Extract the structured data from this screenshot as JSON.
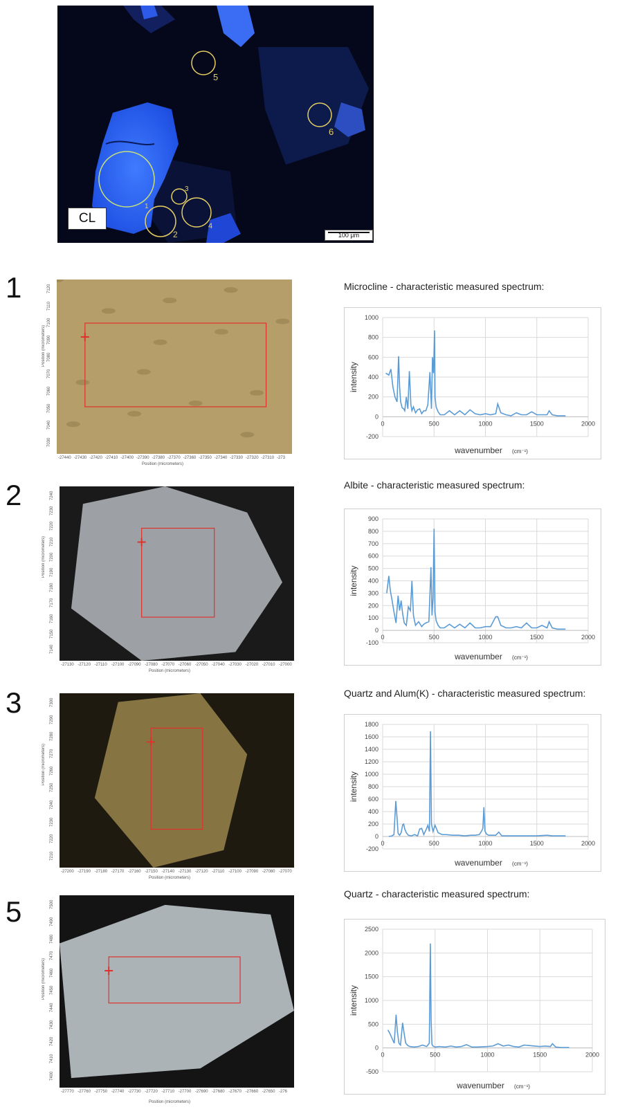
{
  "cl_image": {
    "label": "CL",
    "scale_bar": "100 µm",
    "circle_labels": [
      "1",
      "2",
      "3",
      "4",
      "5",
      "6"
    ]
  },
  "samples": [
    {
      "number": "1",
      "spectrum_title": "Microcline - characteristic measured spectrum:",
      "micro": {
        "tone": "#b59e69",
        "ylabel": "Position (micrometers)",
        "xlabel": "Position (micrometers)",
        "yticks": [
          "7120",
          "7110",
          "7100",
          "7090",
          "7080",
          "7070",
          "7060",
          "7050",
          "7040",
          "7030"
        ],
        "xticks": [
          "-27440",
          "-27430",
          "-27420",
          "-27410",
          "-27400",
          "-27390",
          "-27380",
          "-27370",
          "-27360",
          "-27350",
          "-27340",
          "-27330",
          "-27320",
          "-27310",
          "-273"
        ]
      }
    },
    {
      "number": "2",
      "spectrum_title": "Albite - characteristic measured spectrum:",
      "micro": {
        "tone": "#a4a8ac",
        "ylabel": "Position (micrometers)",
        "xlabel": "Position (micrometers)",
        "yticks": [
          "7240",
          "7230",
          "7220",
          "7210",
          "7200",
          "7190",
          "7180",
          "7170",
          "7160",
          "7150",
          "7140"
        ],
        "xticks": [
          "-27130",
          "-27120",
          "-27110",
          "-27100",
          "-27090",
          "-27080",
          "-27070",
          "-27060",
          "-27050",
          "-27040",
          "-27030",
          "-27020",
          "-27010",
          "-27000"
        ]
      }
    },
    {
      "number": "3",
      "spectrum_title": "Quartz and Alum(K) - characteristic measured spectrum:",
      "micro": {
        "tone": "#8c7a47",
        "ylabel": "Position (micrometers)",
        "xlabel": "Position (micrometers)",
        "yticks": [
          "7300",
          "7290",
          "7280",
          "7270",
          "7260",
          "7250",
          "7240",
          "7230",
          "7220",
          "7210"
        ],
        "xticks": [
          "-27200",
          "-27190",
          "-27180",
          "-27170",
          "-27160",
          "-27150",
          "-27140",
          "-27130",
          "-27120",
          "-27110",
          "-27100",
          "-27090",
          "-27080",
          "-27070"
        ]
      }
    },
    {
      "number": "5",
      "spectrum_title": "Quartz - characteristic measured spectrum:",
      "micro": {
        "tone": "#b4bcc0",
        "ylabel": "Position (micrometers)",
        "xlabel": "Position (micrometers)",
        "yticks": [
          "7500",
          "7490",
          "7480",
          "7470",
          "7460",
          "7450",
          "7440",
          "7430",
          "7420",
          "7410",
          "7400"
        ],
        "xticks": [
          "-27770",
          "-27760",
          "-27750",
          "-27740",
          "-27730",
          "-27720",
          "-27710",
          "-27700",
          "-27690",
          "-27680",
          "-27670",
          "-27660",
          "-27650",
          "-276"
        ]
      }
    }
  ],
  "chart_data": [
    {
      "type": "line",
      "title": "Microcline - characteristic measured spectrum:",
      "xlabel": "wavenumber",
      "xlabel_unit": "(cm⁻¹)",
      "ylabel": "intensity",
      "xlim": [
        0,
        2000
      ],
      "ylim": [
        -200,
        1000
      ],
      "xticks": [
        0,
        500,
        1000,
        1500,
        2000
      ],
      "yticks": [
        -200,
        0,
        200,
        400,
        600,
        800,
        1000
      ],
      "grid": true,
      "color": "#5b9bd5",
      "series": [
        {
          "x": [
            30,
            60,
            80,
            100,
            120,
            140,
            155,
            165,
            175,
            190,
            205,
            215,
            230,
            245,
            260,
            275,
            285,
            300,
            320,
            340,
            360,
            380,
            400,
            420,
            440,
            460,
            475,
            485,
            495,
            505,
            510,
            520,
            540,
            560,
            600,
            650,
            700,
            750,
            800,
            850,
            900,
            950,
            1000,
            1050,
            1100,
            1120,
            1150,
            1200,
            1250,
            1300,
            1350,
            1400,
            1450,
            1500,
            1550,
            1600,
            1620,
            1650,
            1700,
            1750,
            1780
          ],
          "y": [
            440,
            420,
            480,
            300,
            200,
            150,
            610,
            300,
            150,
            90,
            80,
            60,
            200,
            80,
            460,
            120,
            60,
            100,
            40,
            70,
            80,
            30,
            60,
            60,
            120,
            450,
            80,
            600,
            440,
            870,
            200,
            100,
            50,
            20,
            20,
            60,
            20,
            60,
            20,
            70,
            30,
            20,
            30,
            20,
            30,
            130,
            40,
            20,
            10,
            40,
            20,
            20,
            50,
            20,
            20,
            20,
            60,
            20,
            10,
            10,
            10
          ]
        }
      ]
    },
    {
      "type": "line",
      "title": "Albite - characteristic measured spectrum:",
      "xlabel": "wavenumber",
      "xlabel_unit": "(cm⁻¹)",
      "ylabel": "intensity",
      "xlim": [
        0,
        2000
      ],
      "ylim": [
        -100,
        900
      ],
      "xticks": [
        0,
        500,
        1000,
        1500,
        2000
      ],
      "yticks": [
        -100,
        0,
        100,
        200,
        300,
        400,
        500,
        600,
        700,
        800,
        900
      ],
      "grid": true,
      "color": "#5b9bd5",
      "series": [
        {
          "x": [
            40,
            60,
            75,
            90,
            110,
            130,
            150,
            165,
            180,
            195,
            210,
            230,
            250,
            270,
            285,
            300,
            320,
            350,
            380,
            400,
            420,
            450,
            470,
            480,
            490,
            500,
            510,
            520,
            540,
            560,
            600,
            650,
            700,
            750,
            800,
            850,
            900,
            950,
            1000,
            1050,
            1100,
            1120,
            1150,
            1200,
            1250,
            1300,
            1350,
            1400,
            1450,
            1500,
            1550,
            1600,
            1620,
            1650,
            1700,
            1750,
            1780
          ],
          "y": [
            300,
            440,
            320,
            250,
            150,
            60,
            280,
            160,
            240,
            130,
            60,
            40,
            190,
            160,
            400,
            120,
            40,
            70,
            30,
            50,
            60,
            70,
            510,
            120,
            260,
            820,
            150,
            80,
            40,
            20,
            20,
            50,
            20,
            50,
            20,
            60,
            20,
            20,
            30,
            30,
            110,
            110,
            40,
            20,
            20,
            30,
            20,
            60,
            20,
            20,
            40,
            20,
            70,
            20,
            10,
            10,
            10
          ]
        }
      ]
    },
    {
      "type": "line",
      "title": "Quartz and Alum(K) - characteristic measured spectrum:",
      "xlabel": "wavenumber",
      "xlabel_unit": "(cm⁻¹)",
      "ylabel": "intensity",
      "xlim": [
        0,
        2000
      ],
      "ylim": [
        -200,
        1800
      ],
      "xticks": [
        0,
        500,
        1000,
        1500,
        2000
      ],
      "yticks": [
        -200,
        0,
        200,
        400,
        600,
        800,
        1000,
        1200,
        1400,
        1600,
        1800
      ],
      "grid": true,
      "color": "#5b9bd5",
      "series": [
        {
          "x": [
            60,
            90,
            110,
            128,
            140,
            150,
            165,
            180,
            195,
            205,
            215,
            230,
            250,
            280,
            310,
            340,
            360,
            380,
            400,
            420,
            440,
            455,
            465,
            475,
            490,
            510,
            540,
            580,
            620,
            680,
            740,
            800,
            860,
            900,
            940,
            960,
            975,
            985,
            995,
            1010,
            1030,
            1060,
            1100,
            1130,
            1160,
            1200,
            1300,
            1400,
            1500,
            1600,
            1650,
            1700,
            1780
          ],
          "y": [
            0,
            10,
            30,
            570,
            300,
            50,
            20,
            60,
            190,
            200,
            120,
            60,
            20,
            10,
            30,
            10,
            120,
            130,
            30,
            100,
            180,
            80,
            1690,
            200,
            80,
            180,
            60,
            30,
            30,
            20,
            20,
            10,
            20,
            20,
            30,
            80,
            130,
            470,
            90,
            40,
            20,
            20,
            20,
            70,
            10,
            10,
            10,
            10,
            10,
            20,
            10,
            10,
            10
          ]
        }
      ]
    },
    {
      "type": "line",
      "title": "Quartz - characteristic measured spectrum:",
      "xlabel": "wavenumber",
      "xlabel_unit": "(cm⁻¹)",
      "ylabel": "intensity",
      "xlim": [
        0,
        2000
      ],
      "ylim": [
        -500,
        2500
      ],
      "xticks": [
        0,
        500,
        1000,
        1500,
        2000
      ],
      "yticks": [
        -500,
        0,
        500,
        1000,
        1500,
        2000,
        2500
      ],
      "grid": true,
      "color": "#5b9bd5",
      "series": [
        {
          "x": [
            50,
            70,
            90,
            110,
            128,
            140,
            155,
            170,
            190,
            205,
            220,
            240,
            260,
            300,
            340,
            380,
            420,
            445,
            455,
            462,
            470,
            480,
            500,
            540,
            600,
            650,
            700,
            750,
            800,
            850,
            900,
            1000,
            1050,
            1100,
            1150,
            1200,
            1250,
            1300,
            1350,
            1400,
            1450,
            1500,
            1550,
            1600,
            1620,
            1650,
            1700,
            1780
          ],
          "y": [
            380,
            300,
            200,
            100,
            700,
            350,
            100,
            60,
            530,
            300,
            100,
            50,
            30,
            20,
            30,
            60,
            30,
            100,
            2200,
            600,
            80,
            40,
            20,
            30,
            20,
            40,
            20,
            30,
            70,
            20,
            20,
            30,
            40,
            90,
            40,
            60,
            30,
            20,
            60,
            50,
            40,
            30,
            40,
            30,
            90,
            20,
            10,
            10
          ]
        }
      ]
    }
  ]
}
